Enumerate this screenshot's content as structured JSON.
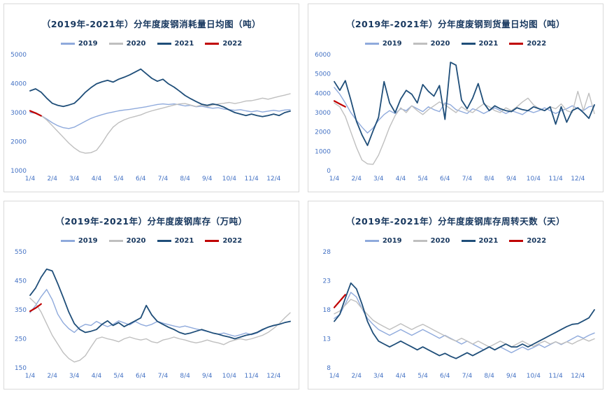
{
  "styles": {
    "title_color": "#17375E",
    "tick_color": "#4472C4",
    "panel_border": "#D9D9D9",
    "series_colors": {
      "y2019": "#8FAADC",
      "y2020": "#BFBFBF",
      "y2021": "#1F4E79",
      "y2022": "#C00000"
    }
  },
  "chart_data": [
    {
      "id": "consumption",
      "type": "line",
      "title": "（2019年-2021年）分年度废钢消耗量日均图（吨）",
      "ylim": [
        1000,
        5000
      ],
      "yticks": [
        1000,
        2000,
        3000,
        4000,
        5000
      ],
      "xticks": [
        "1/4",
        "2/4",
        "3/4",
        "4/4",
        "5/4",
        "6/4",
        "7/4",
        "8/4",
        "9/4",
        "10/4",
        "11/4",
        "12/4"
      ],
      "x_count": 48,
      "legend_position": "top",
      "grid": false,
      "series": [
        {
          "name": "2019",
          "color": "#8FAADC",
          "width": 1.4,
          "values": [
            3000,
            2980,
            2900,
            2780,
            2650,
            2550,
            2480,
            2450,
            2500,
            2600,
            2700,
            2800,
            2870,
            2930,
            2980,
            3020,
            3060,
            3090,
            3110,
            3140,
            3170,
            3200,
            3240,
            3280,
            3300,
            3280,
            3300,
            3270,
            3230,
            3250,
            3200,
            3220,
            3180,
            3150,
            3170,
            3120,
            3100,
            3080,
            3100,
            3060,
            3030,
            3060,
            3020,
            3050,
            3080,
            3050,
            3090,
            3100
          ]
        },
        {
          "name": "2020",
          "color": "#BFBFBF",
          "width": 1.4,
          "values": [
            3050,
            3000,
            2900,
            2750,
            2550,
            2350,
            2150,
            1950,
            1780,
            1650,
            1600,
            1620,
            1700,
            1950,
            2250,
            2500,
            2650,
            2750,
            2820,
            2870,
            2920,
            3000,
            3060,
            3110,
            3160,
            3210,
            3260,
            3300,
            3310,
            3260,
            3210,
            3260,
            3210,
            3260,
            3300,
            3320,
            3350,
            3310,
            3350,
            3400,
            3410,
            3450,
            3500,
            3460,
            3510,
            3560,
            3600,
            3650
          ]
        },
        {
          "name": "2021",
          "color": "#1F4E79",
          "width": 1.8,
          "values": [
            3750,
            3820,
            3700,
            3500,
            3320,
            3250,
            3210,
            3260,
            3320,
            3500,
            3700,
            3860,
            3990,
            4060,
            4110,
            4050,
            4150,
            4220,
            4300,
            4400,
            4500,
            4340,
            4180,
            4080,
            4150,
            3990,
            3880,
            3740,
            3590,
            3480,
            3380,
            3290,
            3250,
            3300,
            3260,
            3190,
            3090,
            3000,
            2950,
            2900,
            2950,
            2900,
            2860,
            2900,
            2950,
            2900,
            3000,
            3050
          ]
        },
        {
          "name": "2022",
          "color": "#C00000",
          "width": 2.2,
          "values": [
            3060,
            2980,
            2890
          ]
        }
      ]
    },
    {
      "id": "arrival",
      "type": "line",
      "title": "（2019年-2021年）分年度废钢到货量日均图（吨）",
      "ylim": [
        0,
        6000
      ],
      "yticks": [
        0,
        1000,
        2000,
        3000,
        4000,
        5000,
        6000
      ],
      "xticks": [
        "1/4",
        "2/4",
        "3/4",
        "4/4",
        "5/4",
        "6/4",
        "7/4",
        "8/4",
        "9/4",
        "10/4",
        "11/4",
        "12/4"
      ],
      "x_count": 48,
      "legend_position": "top",
      "grid": false,
      "series": [
        {
          "name": "2019",
          "color": "#8FAADC",
          "width": 1.4,
          "values": [
            4300,
            3950,
            3500,
            3000,
            2600,
            2250,
            1950,
            2200,
            2600,
            2900,
            3100,
            2950,
            3200,
            3100,
            3350,
            3200,
            3050,
            3300,
            3150,
            3050,
            3500,
            3400,
            3150,
            3050,
            2950,
            3200,
            3100,
            2950,
            3100,
            3250,
            3100,
            2950,
            3100,
            3000,
            2900,
            3100,
            3000,
            3100,
            3250,
            3100,
            2950,
            3100,
            3200,
            3350,
            3200,
            3100,
            3300,
            3350
          ]
        },
        {
          "name": "2020",
          "color": "#BFBFBF",
          "width": 1.4,
          "values": [
            3500,
            3300,
            2800,
            2000,
            1200,
            550,
            350,
            320,
            800,
            1500,
            2250,
            2850,
            3250,
            3000,
            3350,
            3100,
            2900,
            3150,
            3350,
            3550,
            3400,
            3200,
            3000,
            3300,
            3100,
            3000,
            3250,
            3450,
            3300,
            3100,
            3000,
            3250,
            3100,
            3300,
            3550,
            3750,
            3400,
            3200,
            3100,
            3300,
            3200,
            3450,
            3100,
            3000,
            4100,
            3100,
            4000,
            2950
          ]
        },
        {
          "name": "2021",
          "color": "#1F4E79",
          "width": 1.8,
          "values": [
            4600,
            4150,
            4650,
            3650,
            2550,
            1850,
            1300,
            2050,
            2750,
            4600,
            3500,
            3000,
            3700,
            4150,
            3950,
            3500,
            4450,
            4100,
            3850,
            4400,
            2650,
            5600,
            5450,
            3650,
            3200,
            3750,
            4500,
            3500,
            3100,
            3350,
            3200,
            3100,
            3050,
            3250,
            3150,
            3100,
            3300,
            3200,
            3100,
            3300,
            2400,
            3300,
            2500,
            3100,
            3250,
            3000,
            2700,
            3400
          ]
        },
        {
          "name": "2022",
          "color": "#C00000",
          "width": 2.2,
          "values": [
            3600,
            3450,
            3300
          ]
        }
      ]
    },
    {
      "id": "inventory",
      "type": "line",
      "title": "（2019年-2021年）分年度废钢库存（万吨）",
      "ylim": [
        150,
        550
      ],
      "yticks": [
        150,
        250,
        350,
        450,
        550
      ],
      "xticks": [
        "1/4",
        "2/4",
        "3/4",
        "4/4",
        "5/4",
        "6/4",
        "7/4",
        "8/4",
        "9/4",
        "10/4",
        "11/4",
        "12/4"
      ],
      "x_count": 48,
      "legend_position": "top",
      "grid": false,
      "series": [
        {
          "name": "2019",
          "color": "#8FAADC",
          "width": 1.4,
          "values": [
            340,
            365,
            395,
            420,
            385,
            335,
            305,
            285,
            272,
            290,
            300,
            296,
            310,
            300,
            292,
            300,
            312,
            305,
            298,
            310,
            300,
            294,
            300,
            310,
            304,
            299,
            294,
            290,
            294,
            289,
            284,
            280,
            275,
            270,
            266,
            270,
            264,
            259,
            264,
            270,
            264,
            270,
            280,
            290,
            295,
            300,
            306,
            310
          ]
        },
        {
          "name": "2020",
          "color": "#BFBFBF",
          "width": 1.4,
          "values": [
            390,
            372,
            342,
            302,
            262,
            232,
            202,
            182,
            170,
            176,
            192,
            222,
            250,
            256,
            250,
            246,
            240,
            250,
            256,
            250,
            246,
            250,
            240,
            236,
            246,
            250,
            256,
            250,
            246,
            240,
            236,
            240,
            246,
            240,
            236,
            230,
            240,
            246,
            250,
            246,
            250,
            256,
            262,
            272,
            286,
            302,
            322,
            340
          ]
        },
        {
          "name": "2021",
          "color": "#1F4E79",
          "width": 1.8,
          "values": [
            400,
            425,
            462,
            490,
            484,
            440,
            392,
            342,
            302,
            282,
            272,
            276,
            282,
            300,
            312,
            296,
            306,
            292,
            302,
            312,
            322,
            365,
            332,
            310,
            300,
            290,
            282,
            272,
            266,
            270,
            276,
            282,
            276,
            270,
            266,
            260,
            256,
            250,
            256,
            262,
            266,
            272,
            282,
            290,
            296,
            300,
            306,
            310
          ]
        },
        {
          "name": "2022",
          "color": "#C00000",
          "width": 2.2,
          "values": [
            345,
            356,
            370
          ]
        }
      ]
    },
    {
      "id": "turnover-days",
      "type": "line",
      "title": "（2019年-2021年）分年度废钢库存周转天数（天）",
      "ylim": [
        8,
        28
      ],
      "yticks": [
        8,
        13,
        18,
        23,
        28
      ],
      "xticks": [
        "1/4",
        "2/4",
        "3/4",
        "4/4",
        "5/4",
        "6/4",
        "7/4",
        "8/4",
        "9/4",
        "10/4",
        "11/4",
        "12/4"
      ],
      "x_count": 48,
      "legend_position": "top",
      "grid": false,
      "series": [
        {
          "name": "2019",
          "color": "#8FAADC",
          "width": 1.4,
          "values": [
            16.5,
            17.2,
            19.0,
            21.0,
            20.2,
            18.2,
            16.5,
            15.5,
            14.6,
            14.1,
            13.6,
            14.1,
            14.6,
            14.1,
            13.6,
            14.1,
            14.6,
            14.1,
            13.6,
            13.1,
            13.6,
            13.1,
            12.6,
            12.1,
            12.6,
            12.1,
            11.6,
            11.1,
            11.6,
            11.1,
            11.6,
            11.1,
            10.6,
            11.1,
            11.6,
            11.1,
            11.5,
            12.0,
            11.5,
            12.0,
            12.5,
            12.0,
            12.5,
            13.0,
            13.5,
            13.1,
            13.6,
            14.0
          ]
        },
        {
          "name": "2020",
          "color": "#BFBFBF",
          "width": 1.4,
          "values": [
            17.3,
            17.8,
            18.8,
            19.8,
            19.4,
            18.2,
            17.2,
            16.2,
            15.6,
            15.1,
            14.6,
            15.1,
            15.6,
            15.1,
            14.6,
            15.1,
            15.5,
            15.0,
            14.5,
            14.0,
            13.5,
            13.0,
            12.6,
            13.1,
            12.6,
            12.1,
            12.6,
            12.1,
            11.6,
            12.1,
            12.6,
            12.1,
            11.6,
            12.1,
            12.6,
            12.1,
            11.7,
            12.2,
            12.6,
            12.1,
            12.5,
            12.1,
            12.5,
            12.1,
            12.6,
            13.0,
            12.6,
            13.0
          ]
        },
        {
          "name": "2021",
          "color": "#1F4E79",
          "width": 1.8,
          "values": [
            16.0,
            17.2,
            20.0,
            22.6,
            21.6,
            19.0,
            16.0,
            14.0,
            12.6,
            12.1,
            11.6,
            12.1,
            12.6,
            12.1,
            11.6,
            11.1,
            11.6,
            11.1,
            10.6,
            10.1,
            10.5,
            10.0,
            9.6,
            10.1,
            10.6,
            10.1,
            10.6,
            11.1,
            11.6,
            11.1,
            11.6,
            12.1,
            11.6,
            11.6,
            12.1,
            11.6,
            12.1,
            12.6,
            13.1,
            13.6,
            14.1,
            14.6,
            15.1,
            15.5,
            15.6,
            16.1,
            16.6,
            18.0
          ]
        },
        {
          "name": "2022",
          "color": "#C00000",
          "width": 2.2,
          "values": [
            18.4,
            19.5,
            20.6
          ]
        }
      ]
    }
  ]
}
